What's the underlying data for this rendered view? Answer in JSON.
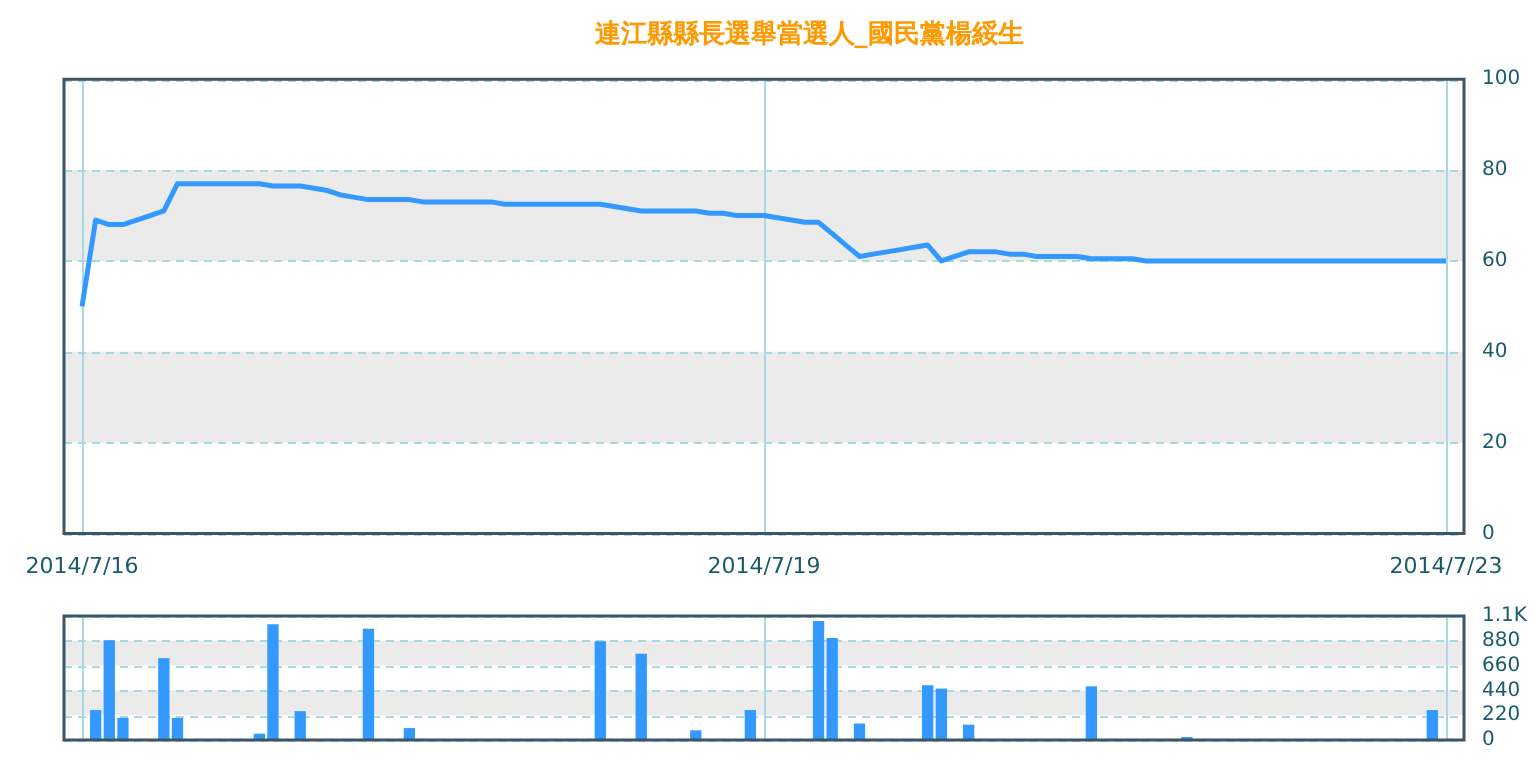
{
  "chart_data": [
    {
      "type": "line",
      "title": "連江縣縣長選舉當選人_國民黨楊綏生",
      "categories": [
        "2014/7/16",
        null,
        null,
        null,
        null,
        null,
        null,
        null,
        null,
        null,
        null,
        null,
        null,
        null,
        null,
        null,
        null,
        null,
        null,
        null,
        null,
        null,
        null,
        null,
        null,
        null,
        null,
        null,
        null,
        null,
        null,
        null,
        null,
        null,
        null,
        null,
        null,
        null,
        null,
        null,
        null,
        null,
        null,
        null,
        null,
        null,
        null,
        null,
        null,
        null,
        "2014/7/19",
        null,
        null,
        null,
        null,
        null,
        null,
        null,
        null,
        null,
        null,
        null,
        null,
        null,
        null,
        null,
        null,
        null,
        null,
        null,
        null,
        null,
        null,
        null,
        null,
        null,
        null,
        null,
        null,
        null,
        null,
        null,
        null,
        null,
        null,
        null,
        null,
        null,
        null,
        null,
        null,
        null,
        null,
        null,
        null,
        null,
        null,
        null,
        null,
        null,
        "2014/7/23"
      ],
      "values": [
        50,
        69,
        68,
        68,
        69,
        70,
        71,
        77,
        77,
        77,
        77,
        77,
        77,
        77,
        76.5,
        76.5,
        76.5,
        76,
        75.5,
        74.5,
        74,
        73.5,
        73.5,
        73.5,
        73.5,
        73,
        73,
        73,
        73,
        73,
        73,
        72.5,
        72.5,
        72.5,
        72.5,
        72.5,
        72.5,
        72.5,
        72.5,
        72,
        71.5,
        71,
        71,
        71,
        71,
        71,
        70.5,
        70.5,
        70,
        70,
        70,
        69.5,
        69,
        68.5,
        68.5,
        66,
        63.5,
        61,
        61.5,
        62,
        62.5,
        63,
        63.5,
        60,
        61,
        62,
        62,
        62,
        61.5,
        61.5,
        61,
        61,
        61,
        61,
        60.5,
        60.5,
        60.5,
        60.5,
        60,
        60,
        60,
        60,
        60,
        60,
        60,
        60,
        60,
        60,
        60,
        60,
        60,
        60,
        60,
        60,
        60,
        60,
        60,
        60,
        60,
        60,
        60
      ],
      "color": "#3399ff",
      "ylim": [
        0,
        100
      ],
      "yticks": [
        0,
        20,
        40,
        60,
        80,
        100
      ],
      "bands": [
        {
          "axis": "y",
          "from": 20,
          "to": 40,
          "color": "#ebebeb"
        },
        {
          "axis": "y",
          "from": 60,
          "to": 80,
          "color": "#ebebeb"
        }
      ],
      "grid": true
    },
    {
      "type": "bar",
      "categories": [
        "2014/7/16",
        null,
        null,
        null,
        null,
        null,
        null,
        null,
        null,
        null,
        null,
        null,
        null,
        null,
        null,
        null,
        null,
        null,
        null,
        null,
        null,
        null,
        null,
        null,
        null,
        null,
        null,
        null,
        null,
        null,
        null,
        null,
        null,
        null,
        null,
        null,
        null,
        null,
        null,
        null,
        null,
        null,
        null,
        null,
        null,
        null,
        null,
        null,
        null,
        null,
        "2014/7/19",
        null,
        null,
        null,
        null,
        null,
        null,
        null,
        null,
        null,
        null,
        null,
        null,
        null,
        null,
        null,
        null,
        null,
        null,
        null,
        null,
        null,
        null,
        null,
        null,
        null,
        null,
        null,
        null,
        null,
        null,
        null,
        null,
        null,
        null,
        null,
        null,
        null,
        null,
        null,
        null,
        null,
        null,
        null,
        null,
        null,
        null,
        null,
        null,
        null,
        "2014/7/23"
      ],
      "values": [
        0,
        260,
        880,
        190,
        0,
        0,
        720,
        190,
        0,
        0,
        0,
        0,
        0,
        50,
        1020,
        0,
        250,
        0,
        0,
        0,
        0,
        980,
        0,
        0,
        100,
        0,
        0,
        0,
        0,
        0,
        0,
        0,
        0,
        0,
        0,
        0,
        0,
        0,
        870,
        0,
        0,
        760,
        0,
        0,
        0,
        80,
        0,
        0,
        0,
        260,
        0,
        0,
        0,
        0,
        1050,
        900,
        0,
        140,
        0,
        0,
        0,
        0,
        480,
        450,
        0,
        130,
        0,
        0,
        0,
        0,
        0,
        0,
        0,
        0,
        470,
        0,
        0,
        0,
        0,
        0,
        0,
        20,
        0,
        0,
        0,
        0,
        0,
        0,
        0,
        0,
        0,
        0,
        0,
        0,
        0,
        0,
        0,
        0,
        0,
        260,
        0
      ],
      "color": "#3399ff",
      "ylim": [
        0,
        1100
      ],
      "yticks": [
        0,
        220,
        440,
        660,
        880,
        {
          "value": 1100,
          "label": "1.1K"
        }
      ],
      "bands": [
        {
          "axis": "y",
          "from": 220,
          "to": 440,
          "color": "#ebebeb"
        },
        {
          "axis": "y",
          "from": 660,
          "to": 880,
          "color": "#ebebeb"
        }
      ],
      "grid": true,
      "tick_labels": "y"
    }
  ]
}
